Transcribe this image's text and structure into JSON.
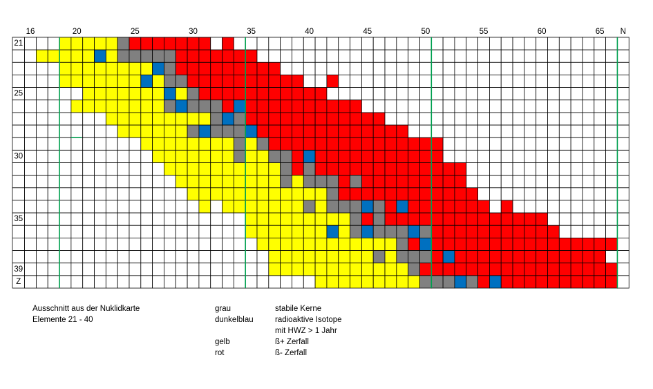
{
  "grid": {
    "n_labels": [
      "16",
      null,
      null,
      null,
      "20",
      null,
      null,
      null,
      null,
      "25",
      null,
      null,
      null,
      null,
      "30",
      null,
      null,
      null,
      null,
      "35",
      null,
      null,
      null,
      null,
      "40",
      null,
      null,
      null,
      null,
      "45",
      null,
      null,
      null,
      null,
      "50",
      null,
      null,
      null,
      null,
      "55",
      null,
      null,
      null,
      null,
      "60",
      null,
      null,
      null,
      null,
      "65",
      null,
      "N"
    ],
    "z_labels": [
      "21",
      null,
      null,
      null,
      "25",
      null,
      null,
      null,
      null,
      "30",
      null,
      null,
      null,
      null,
      "35",
      null,
      null,
      null,
      "39",
      "Z"
    ],
    "colors": {
      "w": "#ffffff",
      "y": "#ffff00",
      "g": "#808080",
      "b": "#0070c0",
      "r": "#ff0000"
    },
    "rows": [
      "wwwyyyyygrrrrrrrwrwwwwwwwwwwwwwwwwwwwwwwwwwwwwwwwwww",
      "wyyyyybygggggrrrrrrrwwwwwwwwwwwwwwwwwwwwwwwwwwwwwwww",
      "wwwyyyyyyyybgrrrrrrrrrwwwwwwwwwwwwwwwwwwwwwwwwwwwwww",
      "wwwyyyyyyybyggrrrrrrrrrrwwrwwwwwwwwwwwwwwwwwwwwwwwww",
      "wwwwwyyyyyyybygrrrrrrrrrrrwwwwwwwwwwwwwwwwwwwwwwwwww",
      "wwwwyyyyyyyygbgggrbrrrrrrrrrrwwwwwwwwwwwwwwwwwwwwwww",
      "wwwwwwwyyyyyyyyygbgrrrrrrrrrrrrwwwwwwwwwwwwwwwwwwwww",
      "wwwwwwwwyyyyyygbgggbrrrrrrrrrrrrrwwwwwwwwwwwwwwwwwww",
      "wwwwwwwwwwyyyyyyyygygrrrrrrrrrrrrrrrwwwwwwwwwwwwwwww",
      "wwwwwwwwwwwyyyyyyygyyggrbrrrrrrrrrrrwwwwwwwwwwwwwwww",
      "wwwwwwwwwwwwyyyyyyyyyygrgrrrrrrrrrrrrrwwwwwwwwwwwwww",
      "wwwwwwwwwwwwwyyyyyyyyygygggrgrrrrrrrrrwwwwwwwwwwwwww",
      "wwwwwwwwwwwwwwyyyyyyyyyyyygrrrrrrrrrrrrwwwwwwwwwwwww",
      "wwwwwwwwwwwwwwwywyyyyyyygygggbgrbrrrrrrrwrwwwwwwwwww",
      "wwwwwwwwwwwwwwwwwwwyyyyyyyyygrgrrrrrrrrrrrrrrwwwwwww",
      "wwwwwwwwwwwwwwwwwwwyyyyyyybygbgggbgrrrrrrrrrrrwwwwww",
      "wwwwwwwwwwwwwwwwwwwwyyyyyyyyyyyygrbrrrrrrrrrrrrrrrrw",
      "wwwwwwwwwwwwwwwwwwwwwyyyyyyyyygygggrbrrrrrrrrrrrrrww",
      "wwwwwwwwwwwwwwwwwwwwwyyyyyyyyyyyygrrrrrrrrrrrrrrrrrw",
      "wwwwwwwwwwwwwwwwwwwwwwwwwyyyyyyyyygggbgrbrrrrrrrrrrw"
    ]
  },
  "caption": {
    "line1": "Ausschnitt aus der Nuklidkarte",
    "line2": "Elemente 21 - 40"
  },
  "legend": {
    "terms": [
      "grau",
      "dunkelblau",
      "gelb",
      "rot"
    ],
    "descriptions": [
      "stabile Kerne",
      "radioaktive Isotope",
      "mit HWZ > 1 Jahr",
      "ß+ Zerfall",
      "ß- Zerfall"
    ]
  }
}
